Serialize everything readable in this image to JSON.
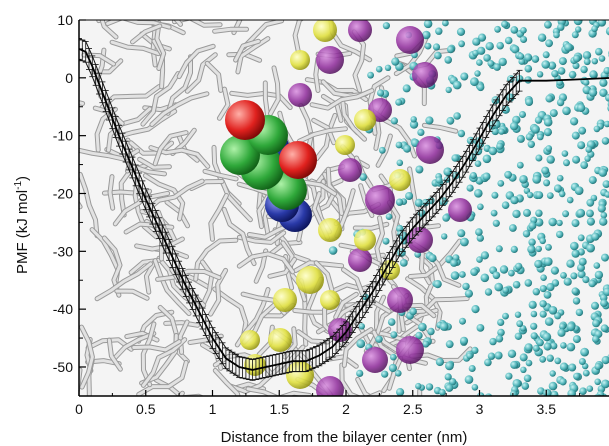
{
  "chart_data": {
    "type": "line",
    "xlabel": "Distance from the bilayer center (nm)",
    "ylabel": "PMF (kJ mol",
    "ylabel_sup": "-1",
    "ylabel_close": ")",
    "xlim": [
      0,
      4
    ],
    "ylim": [
      -55,
      10
    ],
    "x_ticks": [
      "0",
      "0.5",
      "1",
      "1.5",
      "2",
      "2.5",
      "3",
      "3.5",
      "4"
    ],
    "y_ticks": [
      "10",
      "0",
      "-10",
      "-20",
      "-30",
      "-40",
      "-50"
    ],
    "grid": false,
    "legend": "none",
    "series": [
      {
        "x": [
          0,
          0.05,
          0.1,
          0.2,
          0.3,
          0.4,
          0.5,
          0.6,
          0.7,
          0.8,
          0.9,
          1.0,
          1.1,
          1.2,
          1.3,
          1.4,
          1.5,
          1.6,
          1.7,
          1.8,
          1.9,
          2.0,
          2.1,
          2.2,
          2.3,
          2.4,
          2.5,
          2.6,
          2.7,
          2.8,
          2.9,
          3.0,
          3.1,
          3.2,
          3.3,
          3.5,
          3.7,
          4.0
        ],
        "y": [
          5,
          4.5,
          2,
          -4,
          -10,
          -15.5,
          -21,
          -26,
          -31,
          -36,
          -40.5,
          -45,
          -48.5,
          -50,
          -50.5,
          -50,
          -49.5,
          -49,
          -49,
          -48,
          -46.5,
          -44,
          -40.5,
          -37,
          -33,
          -29,
          -26,
          -23.5,
          -21,
          -18,
          -14.5,
          -10.5,
          -6.5,
          -3,
          -0.5,
          -0.5,
          -0.3,
          0
        ],
        "error": 1.8,
        "error_range": [
          0,
          3.3
        ]
      }
    ],
    "colors": {
      "line": "#000000",
      "lipid_tails": "#d8d8d8",
      "headgroup_purple": "#8e2a9a",
      "headgroup_yellow": "#e6e64a",
      "water": "#4fb3b8",
      "solute_green": "#2fa83a",
      "solute_red": "#e0211e",
      "solute_blue": "#2a3aa8"
    }
  }
}
